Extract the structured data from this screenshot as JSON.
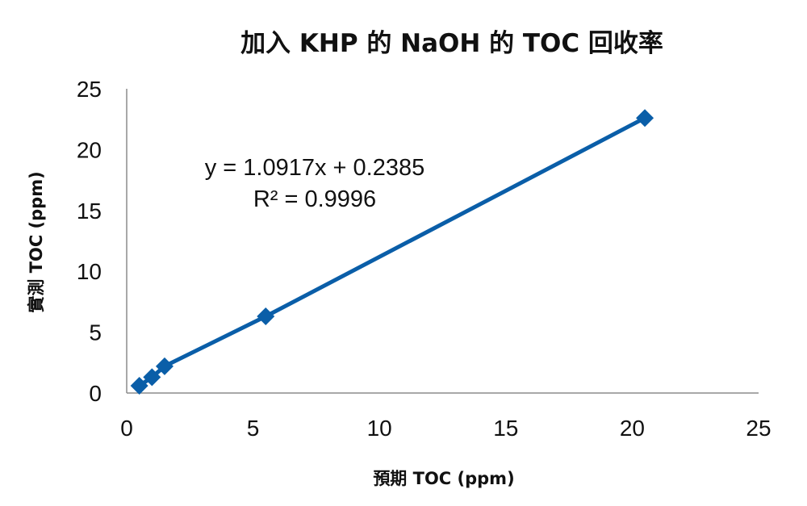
{
  "chart_data": {
    "type": "scatter",
    "title": "加入 KHP 的 NaOH 的 TOC 回收率",
    "xlabel": "預期 TOC (ppm)",
    "ylabel": "實測 TOC (ppm)",
    "xlim": [
      0,
      25
    ],
    "ylim": [
      0,
      25
    ],
    "xticks": [
      "0",
      "5",
      "10",
      "15",
      "20",
      "25"
    ],
    "yticks": [
      "0",
      "5",
      "10",
      "15",
      "20",
      "25"
    ],
    "grid": false,
    "legend": "none",
    "series": [
      {
        "x": [
          0.5,
          1.0,
          1.5,
          5.5,
          20.5
        ],
        "y": [
          0.6,
          1.3,
          2.2,
          6.3,
          22.6
        ],
        "marker": "diamond",
        "color": "#0a5ea8",
        "connected": true
      }
    ],
    "annotations": {
      "equation": "y = 1.0917x + 0.2385",
      "r_squared": "R² = 0.9996"
    }
  }
}
